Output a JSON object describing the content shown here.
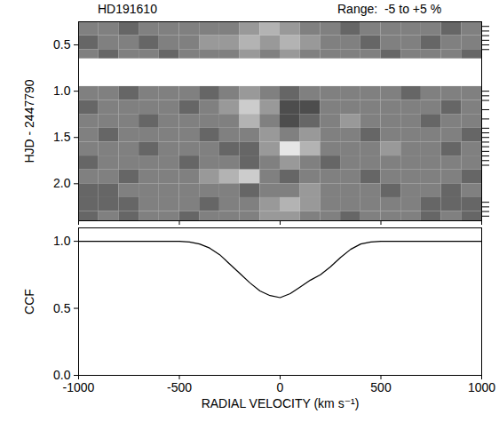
{
  "chart_data": [
    {
      "type": "heatmap",
      "title": "HD191610",
      "subtitle": "Range:  -5 to +5 %",
      "ylabel": "HJD - 2447790",
      "xlim": [
        -1000,
        1000
      ],
      "xticks": [
        -1000,
        -500,
        0,
        500,
        1000
      ],
      "ylim": [
        0.25,
        2.4
      ],
      "yticks": [
        0.5,
        {
          "value": 1,
          "label": "1.0"
        },
        1.5,
        {
          "value": 2,
          "label": "2.0"
        }
      ],
      "tick_labels": "y",
      "color_range": [
        -5,
        5
      ],
      "observation_times": [
        0.3,
        0.35,
        0.4,
        0.45,
        0.5,
        0.55,
        1.0,
        1.05,
        1.1,
        1.2,
        1.3,
        1.4,
        1.45,
        1.5,
        1.55,
        1.6,
        1.65,
        1.7,
        1.75,
        1.8,
        2.2,
        2.25,
        2.3,
        2.35
      ],
      "x_edges": [
        -1000,
        -900,
        -800,
        -700,
        -600,
        -500,
        -400,
        -300,
        -200,
        -100,
        0,
        100,
        200,
        300,
        400,
        500,
        600,
        700,
        800,
        900,
        1000
      ],
      "rows": [
        {
          "t1": 0.25,
          "t2": 0.4,
          "values": [
            0,
            0,
            -1,
            0,
            0,
            0,
            0,
            0,
            1,
            2,
            1,
            0,
            0,
            -1,
            0,
            0,
            0,
            0,
            -1,
            0
          ]
        },
        {
          "t1": 0.4,
          "t2": 0.55,
          "values": [
            -1,
            0,
            0,
            -1,
            0,
            0,
            1,
            1,
            2,
            1,
            2,
            1,
            0,
            0,
            -1,
            0,
            0,
            -1,
            0,
            0
          ]
        },
        {
          "t1": 0.55,
          "t2": 0.65,
          "values": [
            0,
            -1,
            0,
            0,
            -1,
            0,
            0,
            0,
            1,
            0,
            1,
            0,
            0,
            0,
            0,
            -1,
            0,
            0,
            0,
            -1
          ]
        },
        {
          "t1": 0.95,
          "t2": 1.1,
          "values": [
            0,
            0,
            -1,
            0,
            0,
            0,
            -1,
            0,
            1,
            0,
            -1,
            0,
            0,
            0,
            0,
            0,
            -1,
            0,
            0,
            0
          ]
        },
        {
          "t1": 1.1,
          "t2": 1.25,
          "values": [
            -1,
            0,
            0,
            0,
            0,
            -1,
            0,
            1,
            3,
            1,
            -2,
            -2,
            0,
            0,
            0,
            0,
            0,
            0,
            -1,
            0
          ]
        },
        {
          "t1": 1.25,
          "t2": 1.4,
          "values": [
            0,
            0,
            0,
            -1,
            0,
            0,
            0,
            0,
            2,
            0,
            -2,
            -1,
            0,
            1,
            0,
            0,
            0,
            -1,
            0,
            0
          ]
        },
        {
          "t1": 1.4,
          "t2": 1.55,
          "values": [
            0,
            -1,
            0,
            0,
            0,
            0,
            -1,
            0,
            0,
            1,
            0,
            1,
            0,
            0,
            -1,
            0,
            0,
            0,
            0,
            -1
          ]
        },
        {
          "t1": 1.55,
          "t2": 1.7,
          "values": [
            0,
            0,
            0,
            -1,
            0,
            0,
            0,
            -1,
            -1,
            1,
            4,
            2,
            0,
            0,
            0,
            1,
            0,
            0,
            -1,
            0
          ]
        },
        {
          "t1": 1.7,
          "t2": 1.85,
          "values": [
            -1,
            0,
            0,
            0,
            0,
            -1,
            0,
            0,
            -1,
            0,
            1,
            0,
            -1,
            0,
            0,
            0,
            0,
            0,
            0,
            0
          ]
        },
        {
          "t1": 1.85,
          "t2": 2.0,
          "values": [
            0,
            0,
            -1,
            0,
            0,
            0,
            1,
            2,
            3,
            0,
            -1,
            0,
            0,
            0,
            -1,
            0,
            0,
            0,
            0,
            -1
          ]
        },
        {
          "t1": 2.0,
          "t2": 2.15,
          "values": [
            -1,
            -1,
            0,
            0,
            0,
            0,
            0,
            0,
            -1,
            0,
            0,
            1,
            0,
            0,
            0,
            -1,
            0,
            0,
            -1,
            0
          ]
        },
        {
          "t1": 2.15,
          "t2": 2.3,
          "values": [
            -1,
            -1,
            -1,
            0,
            0,
            0,
            -1,
            0,
            0,
            1,
            2,
            1,
            0,
            0,
            0,
            0,
            0,
            -1,
            -1,
            -1
          ]
        },
        {
          "t1": 2.3,
          "t2": 2.4,
          "values": [
            -1,
            0,
            -1,
            0,
            0,
            -1,
            0,
            0,
            0,
            1,
            1,
            0,
            0,
            -1,
            0,
            0,
            0,
            -1,
            0,
            -1
          ]
        }
      ]
    },
    {
      "type": "line",
      "xlabel": "RADIAL VELOCITY (km s⁻¹)",
      "ylabel": "CCF",
      "xlim": [
        -1000,
        1000
      ],
      "xticks": [
        -1000,
        -500,
        0,
        500,
        1000
      ],
      "ylim": [
        0,
        1.1
      ],
      "yticks": [
        {
          "value": 0,
          "label": "0.0"
        },
        0.5,
        {
          "value": 1,
          "label": "1.0"
        }
      ],
      "color": "#000000",
      "x": [
        -1000,
        -500,
        -450,
        -400,
        -350,
        -300,
        -250,
        -200,
        -150,
        -100,
        -50,
        0,
        50,
        100,
        150,
        200,
        250,
        300,
        350,
        400,
        450,
        500,
        1000
      ],
      "values": [
        1,
        1,
        0.995,
        0.98,
        0.95,
        0.9,
        0.83,
        0.76,
        0.69,
        0.63,
        0.595,
        0.58,
        0.61,
        0.66,
        0.71,
        0.75,
        0.81,
        0.88,
        0.94,
        0.98,
        0.995,
        1,
        1
      ]
    }
  ]
}
